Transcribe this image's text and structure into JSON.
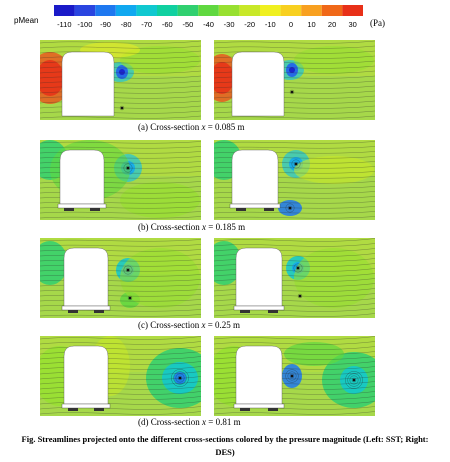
{
  "colorbar": {
    "variable": "pMean",
    "unit": "(Pa)",
    "ticks": [
      "-110",
      "-100",
      "-90",
      "-80",
      "-70",
      "-60",
      "-50",
      "-40",
      "-30",
      "-20",
      "-10",
      "0",
      "10",
      "20",
      "30"
    ],
    "colors": [
      "#1a1ac8",
      "#2a45e0",
      "#1e78f0",
      "#10a8f0",
      "#10c8d0",
      "#10d0a0",
      "#30d070",
      "#60d840",
      "#98e030",
      "#c8e828",
      "#f0f020",
      "#f8d020",
      "#f8a020",
      "#f06818",
      "#e83018"
    ]
  },
  "panels": [
    {
      "caption_prefix": "(a) Cross-section ",
      "caption_var": "x",
      "caption_value": " = 0.085 m"
    },
    {
      "caption_prefix": "(b) Cross-section ",
      "caption_var": "x",
      "caption_value": " = 0.185 m"
    },
    {
      "caption_prefix": "(c) Cross-section ",
      "caption_var": "x",
      "caption_value": " = 0.25 m"
    },
    {
      "caption_prefix": "(d) Cross-section ",
      "caption_var": "x",
      "caption_value": " = 0.81 m"
    }
  ],
  "figure_caption_line1": "Fig. Streamlines projected onto the different cross-sections colored by the pressure magnitude (Left: SST; Right:",
  "figure_caption_line2": "DES)"
}
